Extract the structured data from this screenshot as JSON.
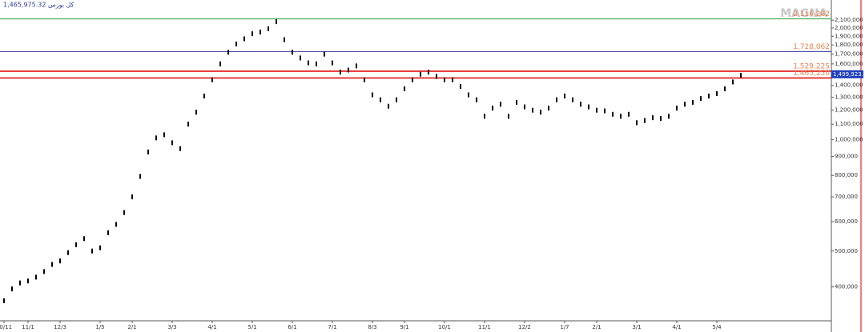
{
  "chart_data": {
    "type": "bar-ticks",
    "title": "1,465,975.32 کل بورس",
    "watermark": "MAGNA",
    "log_scale": true,
    "grid": false,
    "color": "#000000",
    "ylim": [
      324000,
      2380000
    ],
    "yticks": [
      {
        "value": 400000,
        "label": "400,000"
      },
      {
        "value": 500000,
        "label": "500,000"
      },
      {
        "value": 600000,
        "label": "600,000"
      },
      {
        "value": 700000,
        "label": "700,000"
      },
      {
        "value": 800000,
        "label": "800,000"
      },
      {
        "value": 900000,
        "label": "900,000"
      },
      {
        "value": 1000000,
        "label": "1,000,000"
      },
      {
        "value": 1100000,
        "label": "1,100,000"
      },
      {
        "value": 1200000,
        "label": "1,200,000"
      },
      {
        "value": 1300000,
        "label": "1,300,000"
      },
      {
        "value": 1400000,
        "label": "1,400,000"
      },
      {
        "value": 1500000,
        "label": "1,500,000"
      },
      {
        "value": 1600000,
        "label": "1,600,000"
      },
      {
        "value": 1700000,
        "label": "1,700,000"
      },
      {
        "value": 1800000,
        "label": "1,800,000"
      },
      {
        "value": 1900000,
        "label": "1,900,000"
      },
      {
        "value": 2000000,
        "label": "2,000,000"
      },
      {
        "value": 2100000,
        "label": "2,100,000"
      }
    ],
    "levels": [
      {
        "value": 2116282,
        "label": "2,116,282",
        "color": "#2e9e3e"
      },
      {
        "value": 1728062,
        "label": "1,728,062",
        "color": "#3c3ca0"
      },
      {
        "value": 1529225,
        "label": "1,529,225",
        "color": "#e00000"
      },
      {
        "value": 1465250,
        "label": "1,465,250",
        "color": "#e00000"
      }
    ],
    "last_price": {
      "value": 1499923.4,
      "label": "1,499,923.4",
      "color": "#1f3fbf"
    },
    "categories": [
      "10/11",
      null,
      null,
      "11/1",
      null,
      null,
      null,
      "12/3",
      null,
      null,
      null,
      null,
      "1/5",
      null,
      null,
      null,
      "2/1",
      null,
      null,
      null,
      null,
      "3/3",
      null,
      null,
      null,
      null,
      "4/1",
      null,
      null,
      null,
      null,
      "5/1",
      null,
      null,
      null,
      null,
      "6/1",
      null,
      null,
      null,
      null,
      "7/1",
      null,
      null,
      null,
      null,
      "8/3",
      null,
      null,
      null,
      "9/1",
      null,
      null,
      null,
      null,
      "10/1",
      null,
      null,
      null,
      null,
      "11/1",
      null,
      null,
      null,
      null,
      "12/2",
      null,
      null,
      null,
      null,
      "1/7",
      null,
      null,
      null,
      "2/1",
      null,
      null,
      null,
      null,
      "3/1",
      null,
      null,
      null,
      null,
      "4/1",
      null,
      null,
      null,
      null,
      "5/4",
      null,
      null,
      null
    ],
    "values": [
      367000,
      395000,
      410000,
      415000,
      425000,
      440000,
      460000,
      470000,
      495000,
      520000,
      540000,
      500000,
      510000,
      560000,
      590000,
      635000,
      700000,
      795000,
      925000,
      1010000,
      1030000,
      980000,
      945000,
      1100000,
      1185000,
      1310000,
      1450000,
      1600000,
      1720000,
      1810000,
      1870000,
      1930000,
      1950000,
      1990000,
      2080000,
      1860000,
      1720000,
      1660000,
      1610000,
      1600000,
      1700000,
      1610000,
      1520000,
      1540000,
      1580000,
      1450000,
      1320000,
      1280000,
      1230000,
      1280000,
      1370000,
      1450000,
      1500000,
      1520000,
      1480000,
      1450000,
      1450000,
      1390000,
      1320000,
      1280000,
      1155000,
      1215000,
      1245000,
      1155000,
      1260000,
      1225000,
      1200000,
      1185000,
      1215000,
      1280000,
      1310000,
      1280000,
      1245000,
      1225000,
      1200000,
      1195000,
      1170000,
      1155000,
      1170000,
      1110000,
      1125000,
      1145000,
      1140000,
      1155000,
      1215000,
      1245000,
      1260000,
      1290000,
      1310000,
      1330000,
      1370000,
      1430000,
      1490000
    ]
  }
}
